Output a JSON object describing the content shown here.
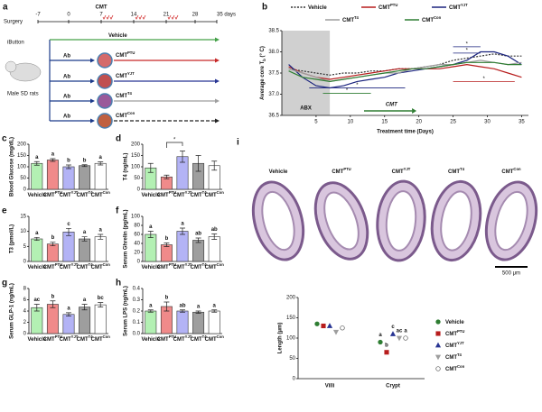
{
  "schematic": {
    "label": "a",
    "surgery": "Surgery",
    "timeline": [
      "-7",
      "0",
      "7",
      "14",
      "21",
      "28",
      "35 days"
    ],
    "cmt": "CMT",
    "ibutton": "iButton",
    "rats": "Male SD rats",
    "ab": "Ab",
    "groups": [
      {
        "name": "Vehicle"
      },
      {
        "name": "CMT",
        "sup": "PTU"
      },
      {
        "name": "CMT",
        "sup": "YJT"
      },
      {
        "name": "CMT",
        "sup": "T4"
      },
      {
        "name": "CMT",
        "sup": "Con"
      }
    ]
  },
  "micrographs": {
    "labels": [
      {
        "name": "Vehicle"
      },
      {
        "name": "CMT",
        "sup": "PTU"
      },
      {
        "name": "CMT",
        "sup": "YJT"
      },
      {
        "name": "CMT",
        "sup": "T4"
      },
      {
        "name": "CMT",
        "sup": "Con"
      }
    ],
    "scale_bar": "500 μm"
  },
  "chart_data": [
    {
      "type": "line",
      "label": "b",
      "ylabel": {
        "text": "Average core T",
        "sub": "b",
        "unit": " (° C)"
      },
      "xlabel": "Treatment time (Days)",
      "x": [
        1,
        3,
        5,
        7,
        9,
        11,
        13,
        15,
        17,
        19,
        21,
        23,
        25,
        27,
        29,
        31,
        33,
        35
      ],
      "xlim": [
        0,
        36
      ],
      "xticks": [
        5,
        10,
        15,
        20,
        25,
        30,
        35
      ],
      "ylim": [
        36.5,
        38.5
      ],
      "yticks": [
        36.5,
        {
          "value": 37,
          "label": "37.0"
        },
        37.5,
        {
          "value": 38,
          "label": "38.0"
        },
        38.5
      ],
      "shade": [
        0,
        7
      ],
      "shade_label": "ABX",
      "annotation": "CMT",
      "significance": [
        "*",
        "*",
        "*",
        "*",
        "*"
      ],
      "series": [
        {
          "name": "Vehicle",
          "color": "#333333",
          "values": [
            37.6,
            37.55,
            37.5,
            37.45,
            37.5,
            37.5,
            37.55,
            37.55,
            37.6,
            37.6,
            37.65,
            37.7,
            37.8,
            37.85,
            37.9,
            37.95,
            37.9,
            37.9
          ]
        },
        {
          "name": "CMT",
          "sup": "PTU",
          "color": "#b71c1c",
          "values": [
            37.65,
            37.5,
            37.4,
            37.35,
            37.4,
            37.45,
            37.5,
            37.55,
            37.6,
            37.6,
            37.6,
            37.6,
            37.65,
            37.7,
            37.65,
            37.6,
            37.5,
            37.4
          ]
        },
        {
          "name": "CMT",
          "sup": "YJT",
          "color": "#1a237e",
          "values": [
            37.7,
            37.4,
            37.2,
            37.15,
            37.2,
            37.3,
            37.35,
            37.4,
            37.5,
            37.55,
            37.6,
            37.65,
            37.7,
            37.8,
            38.0,
            38.0,
            37.9,
            37.7
          ]
        },
        {
          "name": "CMT",
          "sup": "T4",
          "color": "#9e9e9e",
          "values": [
            37.6,
            37.5,
            37.4,
            37.3,
            37.35,
            37.4,
            37.45,
            37.5,
            37.5,
            37.6,
            37.65,
            37.7,
            37.7,
            37.75,
            37.8,
            37.75,
            37.7,
            37.75
          ]
        },
        {
          "name": "CMT",
          "sup": "Con",
          "color": "#2e7d32",
          "values": [
            37.55,
            37.4,
            37.35,
            37.3,
            37.35,
            37.4,
            37.45,
            37.5,
            37.55,
            37.6,
            37.6,
            37.65,
            37.7,
            37.75,
            37.75,
            37.75,
            37.7,
            37.7
          ]
        }
      ]
    },
    {
      "type": "bar",
      "label": "c",
      "ylabel": "Blood Glucose (mg/dL)",
      "categories": [
        {
          "name": "Vehicle"
        },
        {
          "name": "CMT",
          "sup": "PTU"
        },
        {
          "name": "CMT",
          "sup": "YJT"
        },
        {
          "name": "CMT",
          "sup": "T4"
        },
        {
          "name": "CMT",
          "sup": "Con"
        }
      ],
      "values": [
        115,
        130,
        100,
        105,
        115
      ],
      "errors": [
        8,
        6,
        8,
        4,
        7
      ],
      "letters": [
        "a",
        "a",
        "b",
        "b",
        "a"
      ],
      "colors": [
        "#b3f0b3",
        "#f08a8a",
        "#b3b3f5",
        "#9e9e9e",
        "#ffffff"
      ],
      "ylim": [
        0,
        200
      ],
      "yticks": [
        0,
        50,
        100,
        150,
        200
      ]
    },
    {
      "type": "bar",
      "label": "d",
      "ylabel": "T4 (ng/mL)",
      "categories": [
        {
          "name": "Vehicle"
        },
        {
          "name": "CMT",
          "sup": "PTU"
        },
        {
          "name": "CMT",
          "sup": "YJT"
        },
        {
          "name": "CMT",
          "sup": "T4"
        },
        {
          "name": "CMT",
          "sup": "Con"
        }
      ],
      "values": [
        95,
        55,
        145,
        115,
        105
      ],
      "errors": [
        20,
        8,
        25,
        35,
        20
      ],
      "significance": [
        "*"
      ],
      "colors": [
        "#b3f0b3",
        "#f08a8a",
        "#b3b3f5",
        "#9e9e9e",
        "#ffffff"
      ],
      "ylim": [
        0,
        200
      ],
      "yticks": [
        0,
        50,
        100,
        150,
        200
      ]
    },
    {
      "type": "bar",
      "label": "e",
      "ylabel": "T3 (pmol/L)",
      "categories": [
        {
          "name": "Vehicle"
        },
        {
          "name": "CMT",
          "sup": "PTU"
        },
        {
          "name": "CMT",
          "sup": "YJT"
        },
        {
          "name": "CMT",
          "sup": "T4"
        },
        {
          "name": "CMT",
          "sup": "Con"
        }
      ],
      "values": [
        7.5,
        5.8,
        9.8,
        7.5,
        8.2
      ],
      "errors": [
        0.5,
        0.6,
        1.2,
        0.7,
        0.8
      ],
      "letters": [
        "a",
        "b",
        "c",
        "a",
        "a"
      ],
      "colors": [
        "#b3f0b3",
        "#f08a8a",
        "#b3b3f5",
        "#9e9e9e",
        "#ffffff"
      ],
      "ylim": [
        0,
        15
      ],
      "yticks": [
        0,
        5,
        10,
        15
      ]
    },
    {
      "type": "bar",
      "label": "f",
      "ylabel": "Serum Ghrelin (pg/mL)",
      "categories": [
        {
          "name": "Vehicle"
        },
        {
          "name": "CMT",
          "sup": "PTU"
        },
        {
          "name": "CMT",
          "sup": "YJT"
        },
        {
          "name": "CMT",
          "sup": "T4"
        },
        {
          "name": "CMT",
          "sup": "Con"
        }
      ],
      "values": [
        60,
        37,
        67,
        47,
        55
      ],
      "errors": [
        7,
        4,
        7,
        5,
        6
      ],
      "letters": [
        "a",
        "b",
        "a",
        "ab",
        "ab"
      ],
      "colors": [
        "#b3f0b3",
        "#f08a8a",
        "#b3b3f5",
        "#9e9e9e",
        "#ffffff"
      ],
      "ylim": [
        0,
        100
      ],
      "yticks": [
        0,
        20,
        40,
        60,
        80,
        100
      ]
    },
    {
      "type": "bar",
      "label": "g",
      "ylabel": "Serum GLP-1 (ng/mL)",
      "categories": [
        {
          "name": "Vehicle"
        },
        {
          "name": "CMT",
          "sup": "PTU"
        },
        {
          "name": "CMT",
          "sup": "YJT"
        },
        {
          "name": "CMT",
          "sup": "T4"
        },
        {
          "name": "CMT",
          "sup": "Con"
        }
      ],
      "values": [
        4.6,
        5.2,
        3.4,
        4.7,
        5.1
      ],
      "errors": [
        0.6,
        0.6,
        0.3,
        0.5,
        0.4
      ],
      "letters": [
        "ac",
        "b",
        "a",
        "a",
        "bc"
      ],
      "colors": [
        "#b3f0b3",
        "#f08a8a",
        "#b3b3f5",
        "#9e9e9e",
        "#ffffff"
      ],
      "ylim": [
        0,
        8
      ],
      "yticks": [
        0,
        2,
        4,
        6,
        8
      ]
    },
    {
      "type": "bar",
      "label": "h",
      "ylabel": "Serum LPS (ng/mL)",
      "categories": [
        {
          "name": "Vehicle"
        },
        {
          "name": "CMT",
          "sup": "PTU"
        },
        {
          "name": "CMT",
          "sup": "YJT"
        },
        {
          "name": "CMT",
          "sup": "T4"
        },
        {
          "name": "CMT",
          "sup": "Con"
        }
      ],
      "values": [
        0.2,
        0.24,
        0.2,
        0.19,
        0.2
      ],
      "errors": [
        0.01,
        0.04,
        0.01,
        0.01,
        0.01
      ],
      "letters": [
        "a",
        "b",
        "ab",
        "a",
        "a"
      ],
      "colors": [
        "#b3f0b3",
        "#f08a8a",
        "#b3b3f5",
        "#9e9e9e",
        "#ffffff"
      ],
      "ylim": [
        0,
        0.4
      ],
      "yticks": [
        {
          "value": 0,
          "label": "0.0"
        },
        0.1,
        0.2,
        0.3,
        0.4
      ]
    },
    {
      "type": "dot",
      "label": "i",
      "ylabel": "Length (μm)",
      "categories": [
        "Villi",
        "Crypt"
      ],
      "ylim": [
        0,
        200
      ],
      "yticks": [
        0,
        50,
        100,
        150,
        200
      ],
      "letters_crypt": [
        "a",
        "b",
        "c",
        "ac",
        "a"
      ],
      "series": [
        {
          "name": "Vehicle",
          "color": "#2e7d32",
          "marker": "circle",
          "values": [
            135,
            90
          ]
        },
        {
          "name": "CMT",
          "sup": "PTU",
          "color": "#b71c1c",
          "marker": "square",
          "values": [
            130,
            65
          ]
        },
        {
          "name": "CMT",
          "sup": "YJT",
          "color": "#283593",
          "marker": "triangle",
          "values": [
            130,
            110
          ]
        },
        {
          "name": "CMT",
          "sup": "T4",
          "color": "#9e9e9e",
          "marker": "triangle-down",
          "values": [
            115,
            100
          ]
        },
        {
          "name": "CMT",
          "sup": "Con",
          "color": "#555555",
          "marker": "open-circle",
          "values": [
            125,
            100
          ]
        }
      ]
    }
  ]
}
